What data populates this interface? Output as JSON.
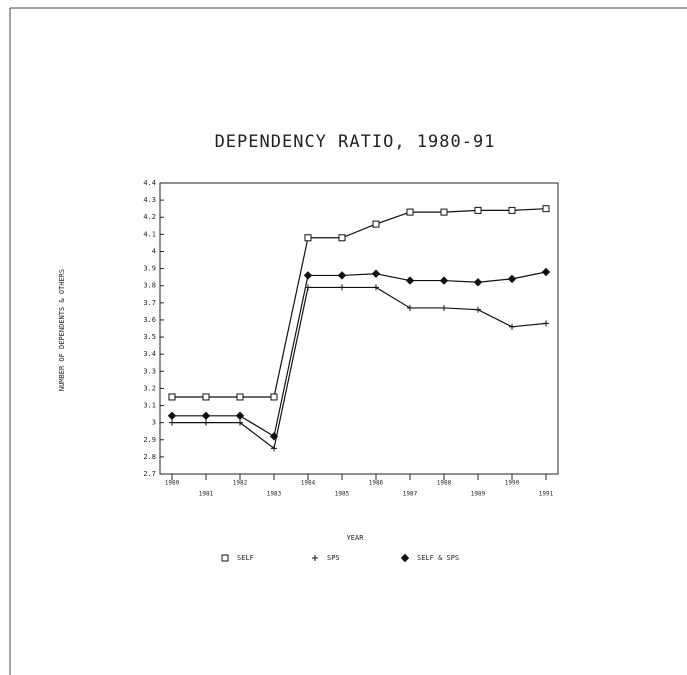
{
  "chart_data": {
    "type": "line",
    "title": "DEPENDENCY RATIO, 1980-91",
    "x_label": "YEAR",
    "y_label": "NUMBER OF DEPENDENTS & OTHERS",
    "categories": [
      "1980",
      "1981",
      "1982",
      "1983",
      "1984",
      "1985",
      "1986",
      "1987",
      "1988",
      "1989",
      "1990",
      "1991"
    ],
    "series": [
      {
        "name": "SELF",
        "color": "#111",
        "marker": "square",
        "values": [
          3.15,
          3.15,
          3.15,
          3.15,
          4.08,
          4.08,
          4.16,
          4.23,
          4.23,
          4.24,
          4.24,
          4.25
        ]
      },
      {
        "name": "SPS",
        "color": "#111",
        "marker": "plus",
        "values": [
          3.0,
          3.0,
          3.0,
          2.85,
          3.79,
          3.79,
          3.79,
          3.67,
          3.67,
          3.66,
          3.56,
          3.58
        ]
      },
      {
        "name": "SELF & SPS",
        "color": "#111",
        "marker": "diamond",
        "values": [
          3.04,
          3.04,
          3.04,
          2.92,
          3.86,
          3.86,
          3.87,
          3.83,
          3.83,
          3.82,
          3.84,
          3.88
        ]
      }
    ],
    "ylim": [
      2.7,
      4.4
    ],
    "yticks": [
      2.7,
      2.8,
      2.9,
      3,
      3.1,
      3.2,
      3.3,
      3.4,
      3.5,
      3.6,
      3.7,
      3.8,
      3.9,
      4,
      4.1,
      4.2,
      4.3,
      4.4
    ]
  }
}
